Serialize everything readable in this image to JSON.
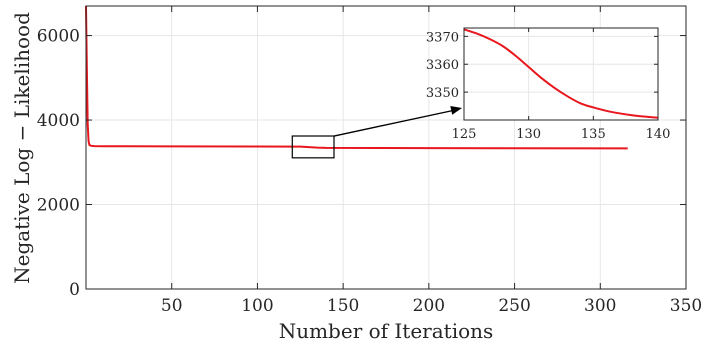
{
  "chart_data": [
    {
      "type": "line",
      "xlabel": "Number of Iterations",
      "ylabel": "Negative Log − Likelihood",
      "xlim": [
        0,
        350
      ],
      "ylim": [
        0,
        6700
      ],
      "xticks": [
        50,
        100,
        150,
        200,
        250,
        300,
        350
      ],
      "xtick_labels": [
        "50",
        "100",
        "150",
        "200",
        "250",
        "300",
        "350"
      ],
      "yticks": [
        0,
        2000,
        4000,
        6000
      ],
      "ytick_labels": [
        "0",
        "2000",
        "4000",
        "6000"
      ],
      "grid": true,
      "series": [
        {
          "color": "#e8171d",
          "x": [
            0,
            0.5,
            1,
            1.5,
            2,
            3,
            5,
            10,
            50,
            100,
            125,
            130,
            135,
            140,
            200,
            250,
            316
          ],
          "y": [
            6700,
            5200,
            3900,
            3500,
            3410,
            3390,
            3383,
            3380,
            3377,
            3374,
            3372,
            3358,
            3347,
            3341,
            3335,
            3332,
            3330
          ]
        }
      ],
      "zoom_box": {
        "x": [
          125,
          140
        ],
        "y": [
          3200,
          3480
        ]
      }
    },
    {
      "type": "line",
      "title": "",
      "xlim": [
        125,
        140
      ],
      "ylim": [
        3340,
        3373
      ],
      "xticks": [
        125,
        130,
        135,
        140
      ],
      "xtick_labels": [
        "125",
        "130",
        "135",
        "140"
      ],
      "yticks": [
        3350,
        3360,
        3370
      ],
      "ytick_labels": [
        "3350",
        "3360",
        "3370"
      ],
      "grid": true,
      "series": [
        {
          "color": "#e8171d",
          "x": [
            125,
            126,
            127,
            128,
            129,
            130,
            131,
            132,
            133,
            134,
            135,
            136,
            137,
            138,
            139,
            140
          ],
          "y": [
            3372.5,
            3371,
            3369,
            3366.5,
            3363,
            3359,
            3355,
            3351.5,
            3348.5,
            3346,
            3344.5,
            3343.3,
            3342.4,
            3341.7,
            3341.2,
            3340.8
          ]
        }
      ]
    }
  ]
}
